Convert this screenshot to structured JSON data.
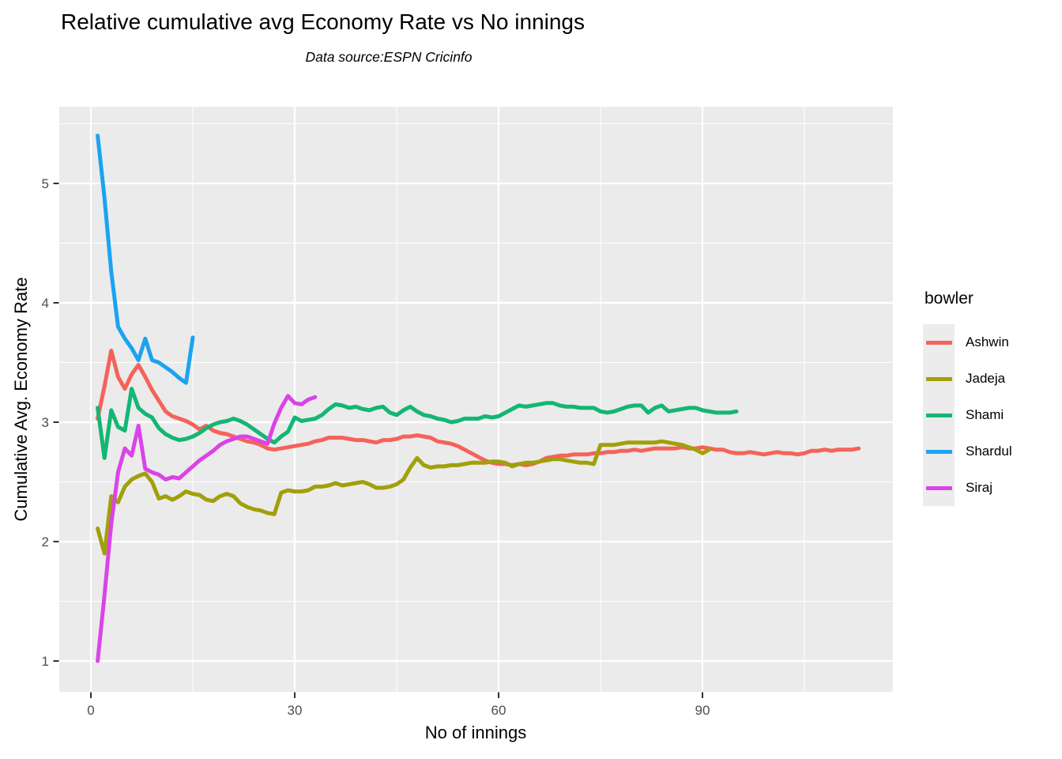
{
  "chart_data": {
    "type": "line",
    "title": "Relative cumulative avg Economy Rate vs No innings",
    "subtitle": "Data source:ESPN Cricinfo",
    "xlabel": "No of innings",
    "ylabel": "Cumulative Avg. Economy Rate",
    "legend_title": "bowler",
    "legend_position": "right",
    "grid": true,
    "panel_bg": "#EBEBEB",
    "grid_color": "#FFFFFF",
    "tick_label_color": "#4D4D4D",
    "tick_mark_color": "#333333",
    "xlim": [
      -4.65,
      118
    ],
    "ylim": [
      0.74,
      5.64
    ],
    "x_ticks": [
      0,
      30,
      60,
      90
    ],
    "y_ticks": [
      1,
      2,
      3,
      4,
      5
    ],
    "x_minor_ticks": [
      15,
      45,
      75,
      105
    ],
    "y_minor_ticks": [
      1.5,
      2.5,
      3.5,
      4.5,
      5.5
    ],
    "x_start": 1,
    "x_step": 1,
    "series": [
      {
        "name": "Ashwin",
        "color": "#F4635A",
        "values": [
          3.03,
          3.3,
          3.6,
          3.38,
          3.28,
          3.4,
          3.48,
          3.38,
          3.27,
          3.18,
          3.09,
          3.05,
          3.03,
          3.01,
          2.98,
          2.94,
          2.97,
          2.93,
          2.91,
          2.9,
          2.88,
          2.86,
          2.84,
          2.83,
          2.81,
          2.78,
          2.77,
          2.78,
          2.79,
          2.8,
          2.81,
          2.82,
          2.84,
          2.85,
          2.87,
          2.87,
          2.87,
          2.86,
          2.85,
          2.85,
          2.84,
          2.83,
          2.85,
          2.85,
          2.86,
          2.88,
          2.88,
          2.89,
          2.88,
          2.87,
          2.84,
          2.83,
          2.82,
          2.8,
          2.77,
          2.74,
          2.71,
          2.68,
          2.66,
          2.65,
          2.65,
          2.64,
          2.65,
          2.64,
          2.65,
          2.67,
          2.7,
          2.71,
          2.72,
          2.72,
          2.73,
          2.73,
          2.73,
          2.74,
          2.74,
          2.75,
          2.75,
          2.76,
          2.76,
          2.77,
          2.76,
          2.77,
          2.78,
          2.78,
          2.78,
          2.78,
          2.79,
          2.78,
          2.78,
          2.79,
          2.78,
          2.77,
          2.77,
          2.75,
          2.74,
          2.74,
          2.75,
          2.74,
          2.73,
          2.74,
          2.75,
          2.74,
          2.74,
          2.73,
          2.74,
          2.76,
          2.76,
          2.77,
          2.76,
          2.77,
          2.77,
          2.77,
          2.78
        ]
      },
      {
        "name": "Jadeja",
        "color": "#A0A00B",
        "values": [
          2.11,
          1.9,
          2.38,
          2.33,
          2.46,
          2.52,
          2.55,
          2.57,
          2.5,
          2.36,
          2.38,
          2.35,
          2.38,
          2.42,
          2.4,
          2.39,
          2.35,
          2.34,
          2.38,
          2.4,
          2.38,
          2.32,
          2.29,
          2.27,
          2.26,
          2.24,
          2.23,
          2.41,
          2.43,
          2.42,
          2.42,
          2.43,
          2.46,
          2.46,
          2.47,
          2.49,
          2.47,
          2.48,
          2.49,
          2.5,
          2.48,
          2.45,
          2.45,
          2.46,
          2.48,
          2.52,
          2.62,
          2.7,
          2.64,
          2.62,
          2.63,
          2.63,
          2.64,
          2.64,
          2.65,
          2.66,
          2.66,
          2.66,
          2.67,
          2.67,
          2.66,
          2.63,
          2.65,
          2.66,
          2.66,
          2.67,
          2.68,
          2.69,
          2.69,
          2.68,
          2.67,
          2.66,
          2.66,
          2.65,
          2.81,
          2.81,
          2.81,
          2.82,
          2.83,
          2.83,
          2.83,
          2.83,
          2.83,
          2.84,
          2.83,
          2.82,
          2.81,
          2.79,
          2.77,
          2.74,
          2.77
        ]
      },
      {
        "name": "Shami",
        "color": "#14B674",
        "values": [
          3.12,
          2.7,
          3.1,
          2.96,
          2.93,
          3.28,
          3.12,
          3.07,
          3.04,
          2.95,
          2.9,
          2.87,
          2.85,
          2.86,
          2.88,
          2.91,
          2.95,
          2.98,
          3.0,
          3.01,
          3.03,
          3.01,
          2.98,
          2.94,
          2.9,
          2.86,
          2.83,
          2.88,
          2.92,
          3.04,
          3.01,
          3.02,
          3.03,
          3.06,
          3.11,
          3.15,
          3.14,
          3.12,
          3.13,
          3.11,
          3.1,
          3.12,
          3.13,
          3.08,
          3.06,
          3.1,
          3.13,
          3.09,
          3.06,
          3.05,
          3.03,
          3.02,
          3.0,
          3.01,
          3.03,
          3.03,
          3.03,
          3.05,
          3.04,
          3.05,
          3.08,
          3.11,
          3.14,
          3.13,
          3.14,
          3.15,
          3.16,
          3.16,
          3.14,
          3.13,
          3.13,
          3.12,
          3.12,
          3.12,
          3.09,
          3.08,
          3.09,
          3.11,
          3.13,
          3.14,
          3.14,
          3.08,
          3.12,
          3.14,
          3.09,
          3.1,
          3.11,
          3.12,
          3.12,
          3.1,
          3.09,
          3.08,
          3.08,
          3.08,
          3.09
        ]
      },
      {
        "name": "Shardul",
        "color": "#1BA3F2",
        "values": [
          5.4,
          4.88,
          4.26,
          3.8,
          3.7,
          3.62,
          3.52,
          3.7,
          3.52,
          3.5,
          3.46,
          3.42,
          3.37,
          3.33,
          3.71
        ]
      },
      {
        "name": "Siraj",
        "color": "#D944E6",
        "values": [
          1.0,
          1.55,
          2.15,
          2.58,
          2.78,
          2.72,
          2.97,
          2.61,
          2.58,
          2.56,
          2.52,
          2.54,
          2.53,
          2.58,
          2.63,
          2.68,
          2.72,
          2.76,
          2.81,
          2.84,
          2.86,
          2.88,
          2.88,
          2.86,
          2.84,
          2.82,
          2.99,
          3.12,
          3.22,
          3.16,
          3.15,
          3.19,
          3.21
        ]
      }
    ]
  }
}
